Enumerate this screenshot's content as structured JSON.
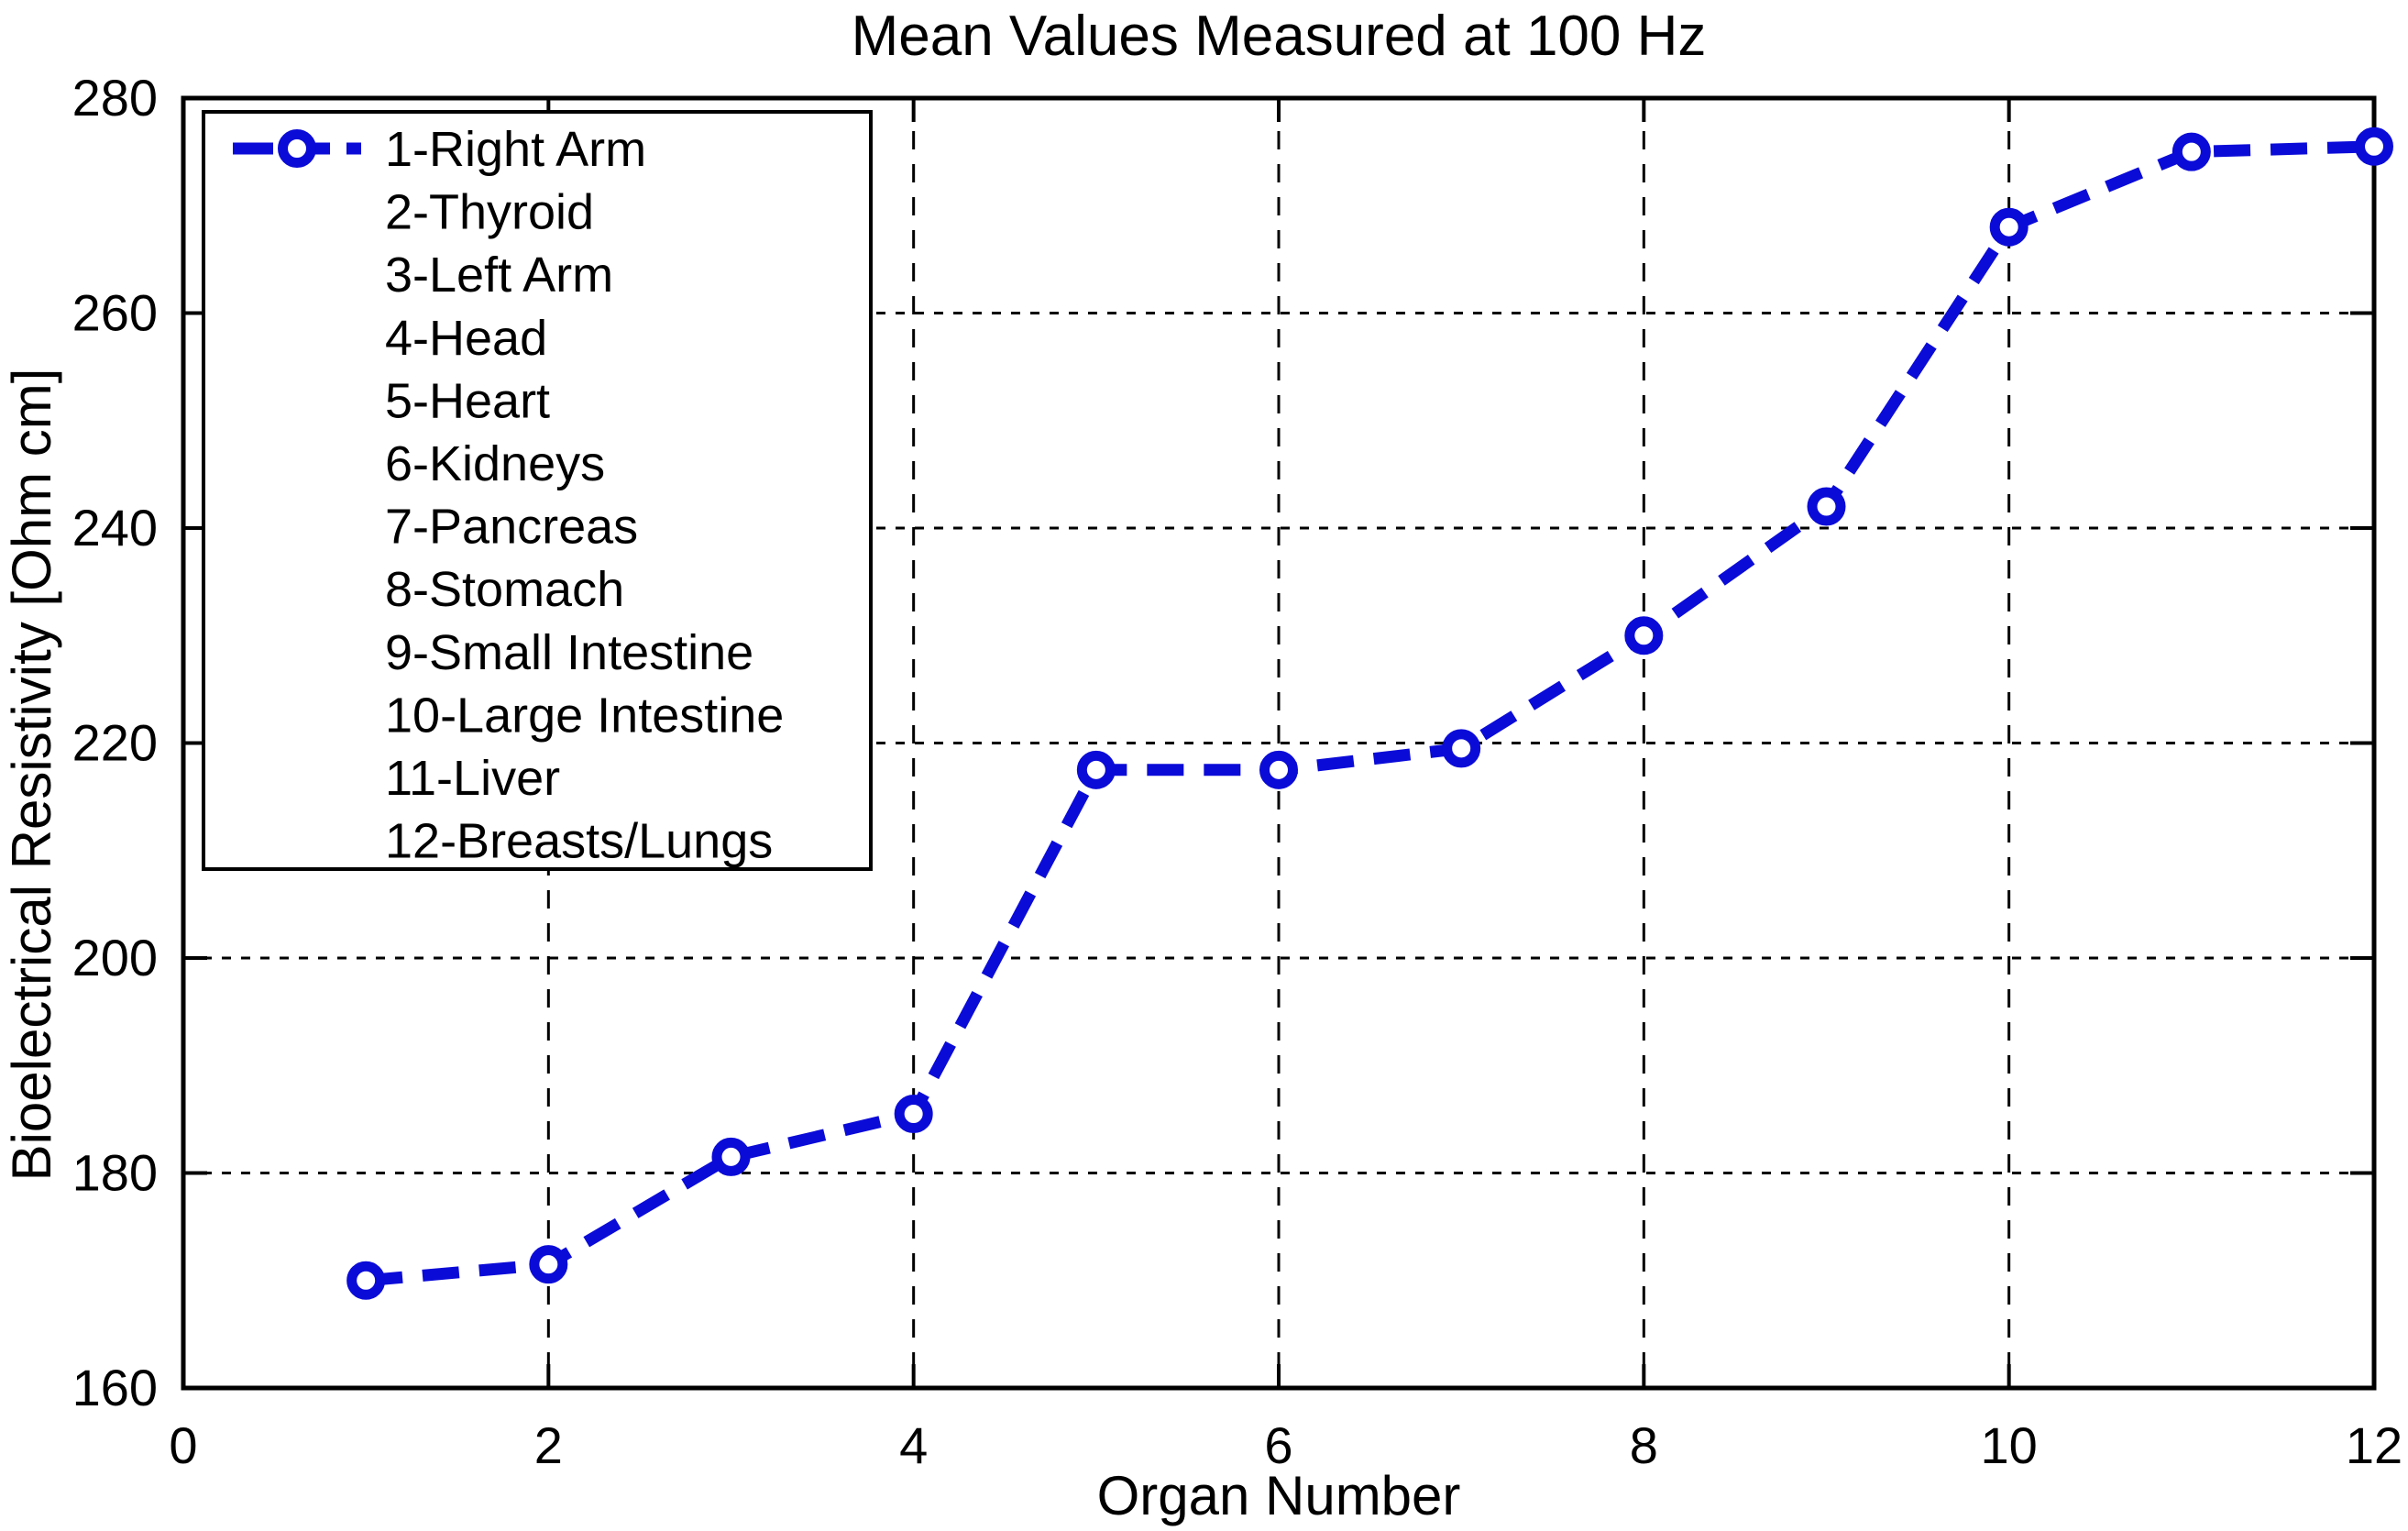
{
  "chart_data": {
    "type": "line",
    "title": "Mean Values Measured at 100 Hz",
    "xlabel": "Organ Number",
    "ylabel": "Bioelectrical Resistivity [Ohm cm]",
    "x": [
      1,
      2,
      3,
      4,
      5,
      6,
      7,
      8,
      9,
      10,
      11,
      12
    ],
    "y": [
      170,
      171.5,
      181.5,
      185.5,
      217.5,
      217.5,
      219.5,
      230,
      242,
      268,
      275,
      275.5
    ],
    "xlim": [
      0,
      12
    ],
    "ylim": [
      160,
      280
    ],
    "xticks": [
      0,
      2,
      4,
      6,
      8,
      10,
      12
    ],
    "yticks": [
      160,
      180,
      200,
      220,
      240,
      260,
      280
    ],
    "grid": true,
    "grid_color": "#000000",
    "line_color": "#0b0bd8",
    "line_style": "dashed",
    "marker": "circle",
    "marker_fill": "#ffffff",
    "legend_position": "top-left",
    "legend_entries": [
      "1-Right Arm",
      "2-Thyroid",
      "3-Left Arm",
      "4-Head",
      "5-Heart",
      "6-Kidneys",
      "7-Pancreas",
      "8-Stomach",
      "9-Small Intestine",
      "10-Large Intestine",
      "11-Liver",
      "12-Breasts/Lungs"
    ]
  }
}
